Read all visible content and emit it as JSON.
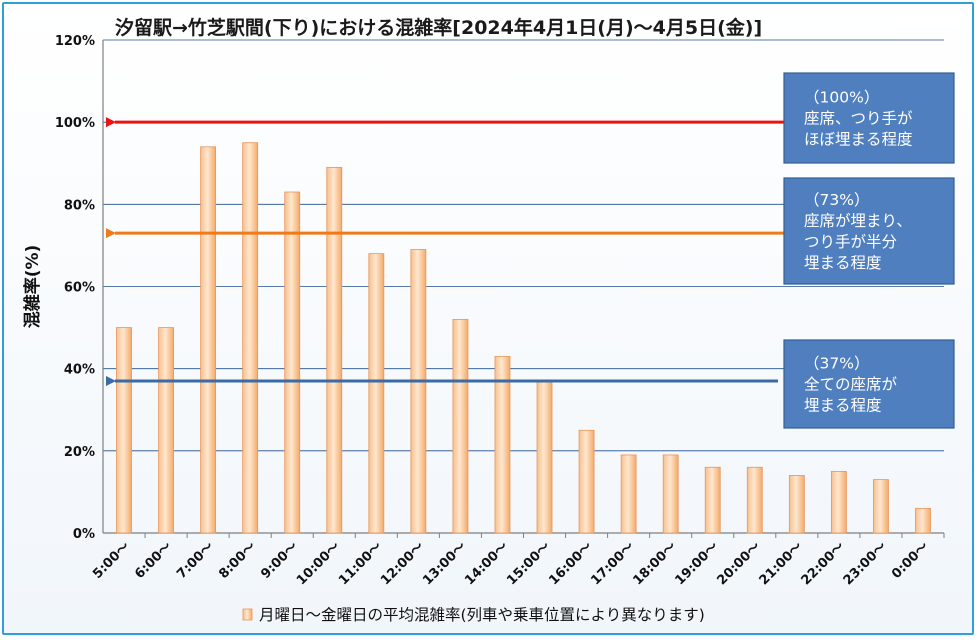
{
  "chart_data": {
    "type": "bar",
    "title": "汐留駅→竹芝駅間(下り)における混雑率[2024年4月1日(月)～4月5日(金)]",
    "ylabel": "混雑率(%)",
    "xlabel": "",
    "ylim": [
      0,
      120
    ],
    "ytick_step": 20,
    "ytick_suffix": "%",
    "grid": true,
    "legend_position": "bottom",
    "categories": [
      "5:00～",
      "6:00～",
      "7:00～",
      "8:00～",
      "9:00～",
      "10:00～",
      "11:00～",
      "12:00～",
      "13:00～",
      "14:00～",
      "15:00～",
      "16:00～",
      "17:00～",
      "18:00～",
      "19:00～",
      "20:00～",
      "21:00～",
      "22:00～",
      "23:00～",
      "0:00～"
    ],
    "series": [
      {
        "name": "月曜日～金曜日の平均混雑率(列車や乗車位置により異なります)",
        "color": "#f6b880",
        "values": [
          50,
          50,
          94,
          95,
          83,
          89,
          68,
          69,
          52,
          43,
          37,
          25,
          19,
          19,
          16,
          16,
          14,
          15,
          13,
          6
        ]
      }
    ],
    "reference_lines": [
      {
        "value": 100,
        "color": "#ee1111",
        "box_lines": [
          "（100%）",
          "座席、つり手が",
          "ほぼ埋まる程度"
        ]
      },
      {
        "value": 73,
        "color": "#ee7a1a",
        "box_lines": [
          "（73%）",
          "座席が埋まり、",
          "つり手が半分",
          "埋まる程度"
        ]
      },
      {
        "value": 37,
        "color": "#3a6ba4",
        "box_lines": [
          "（37%）",
          "全ての座席が",
          "埋まる程度"
        ]
      }
    ],
    "annotation_box_color": "#4f7fbf"
  }
}
